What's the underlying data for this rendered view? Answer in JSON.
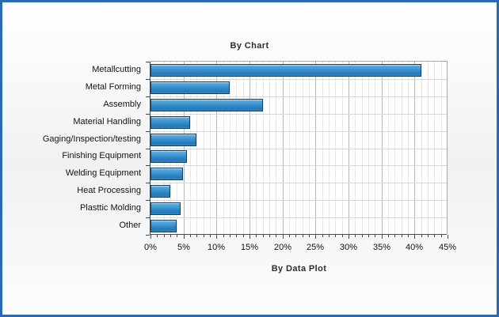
{
  "frame": {
    "border_color": "#2a6ab3"
  },
  "chart_data": {
    "type": "bar",
    "orientation": "horizontal",
    "title": "By Chart",
    "xlabel": "By Data Plot",
    "ylabel": "",
    "categories": [
      "Metallcutting",
      "Metal Forming",
      "Assembly",
      "Material Handling",
      "Gaging/Inspection/testing",
      "Finishing Equipment",
      "Welding Equipment",
      "Heat Processing",
      "Plasttic Molding",
      "Other"
    ],
    "values": [
      41,
      12,
      17,
      6,
      7,
      5.5,
      4.9,
      3,
      4.5,
      4
    ],
    "value_unit": "%",
    "xlim": [
      0,
      45
    ],
    "x_major_step": 5,
    "x_minor_step": 1,
    "x_tick_labels": [
      "0%",
      "5%",
      "10%",
      "15%",
      "20%",
      "25%",
      "30%",
      "35%",
      "40%",
      "45%"
    ],
    "grid": true,
    "legend": "none",
    "bar_color": "#3590cf",
    "bar_border_color": "#17405f"
  }
}
